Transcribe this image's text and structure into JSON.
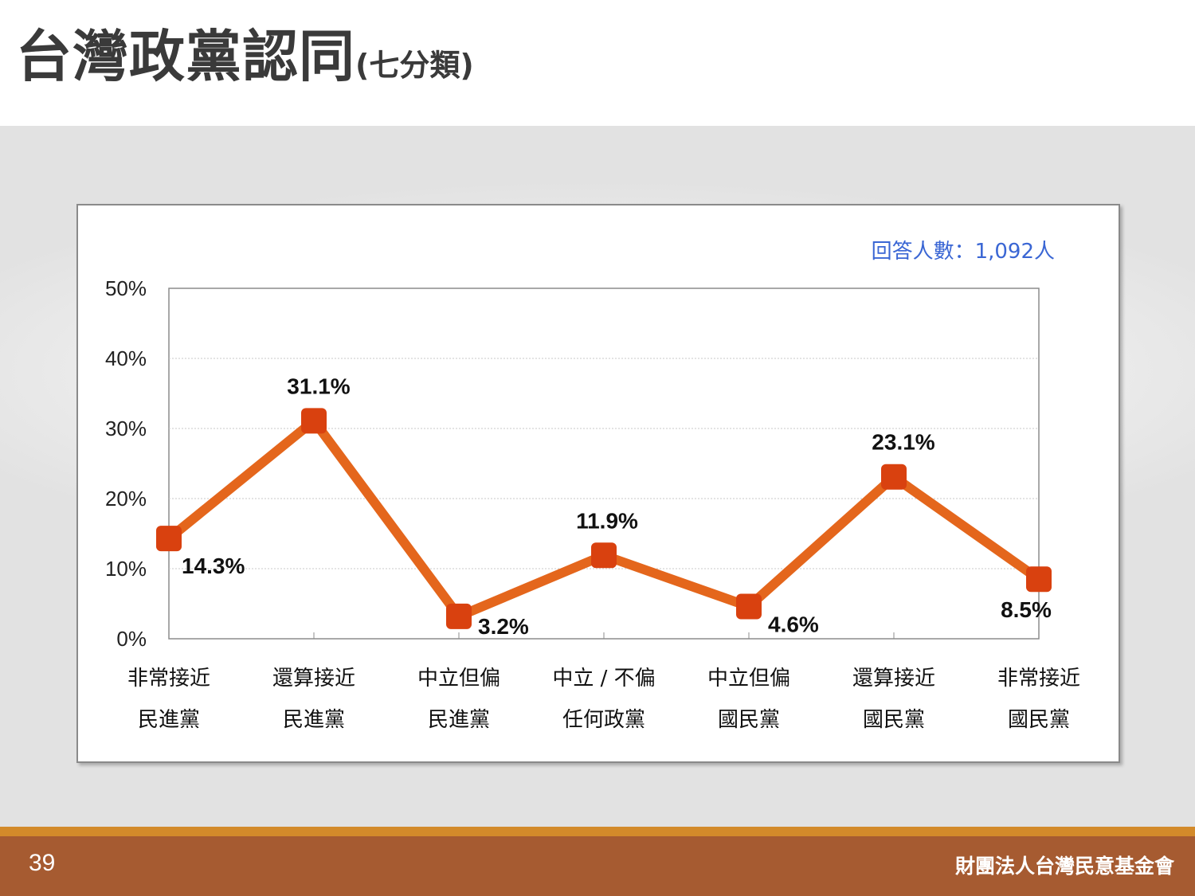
{
  "title": {
    "main": "台灣政黨認同",
    "sub": "(七分類)"
  },
  "chart_data": {
    "type": "line",
    "categories": [
      [
        "非常接近",
        "民進黨"
      ],
      [
        "還算接近",
        "民進黨"
      ],
      [
        "中立但偏",
        "民進黨"
      ],
      [
        "中立 / 不偏",
        "任何政黨"
      ],
      [
        "中立但偏",
        "國民黨"
      ],
      [
        "還算接近",
        "國民黨"
      ],
      [
        "非常接近",
        "國民黨"
      ]
    ],
    "values": [
      14.3,
      31.1,
      3.2,
      11.9,
      4.6,
      23.1,
      8.5
    ],
    "data_labels": [
      "14.3%",
      "31.1%",
      "3.2%",
      "11.9%",
      "4.6%",
      "23.1%",
      "8.5%"
    ],
    "ylim": [
      0,
      50
    ],
    "yticks": [
      0,
      10,
      20,
      30,
      40,
      50
    ],
    "ytick_labels": [
      "0%",
      "10%",
      "20%",
      "30%",
      "40%",
      "50%"
    ],
    "grid": true,
    "line_color": "#e4661c",
    "marker_color": "#d9410f",
    "note": "回答人數：1,092人",
    "note_color": "#3a66d4"
  },
  "footer": {
    "page_number": "39",
    "organization": "財團法人台灣民意基金會"
  }
}
